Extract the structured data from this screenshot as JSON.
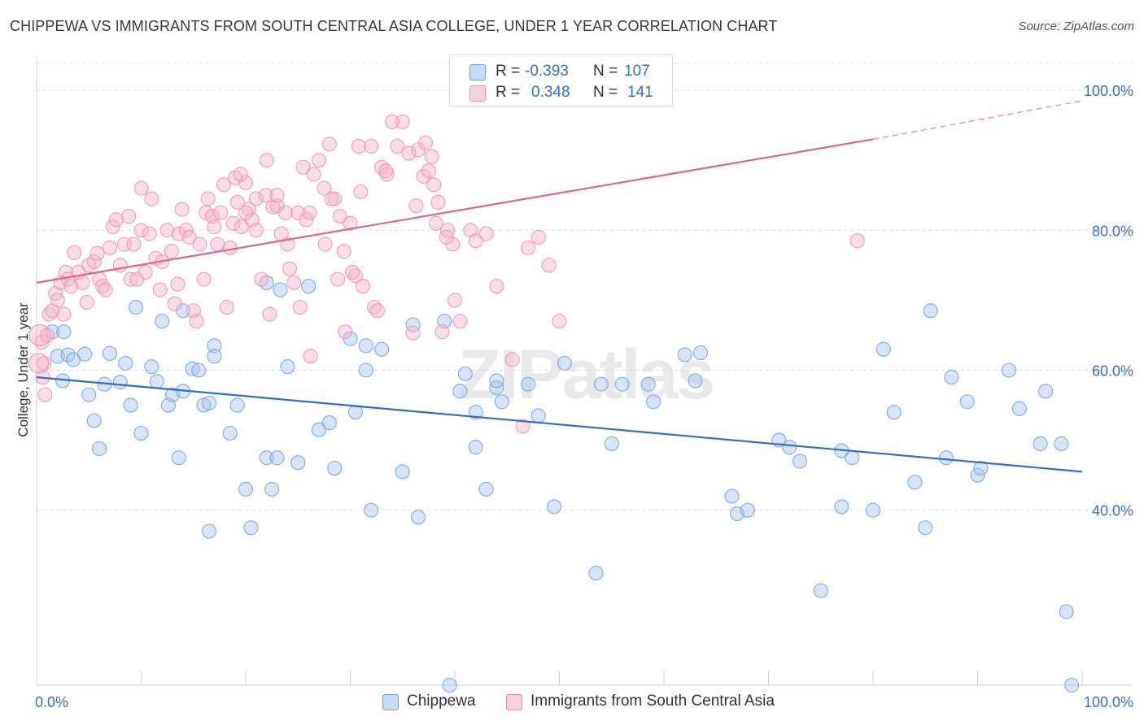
{
  "title": "CHIPPEWA VS IMMIGRANTS FROM SOUTH CENTRAL ASIA COLLEGE, UNDER 1 YEAR CORRELATION CHART",
  "source": "Source: ZipAtlas.com",
  "watermark": "ZIPatlas",
  "legend": {
    "rows": [
      {
        "r_label": "R =",
        "r_value": "-0.393",
        "n_label": "N =",
        "n_value": "107",
        "color": "#a9c4f0"
      },
      {
        "r_label": "R =",
        "r_value": "0.348",
        "n_label": "N =",
        "n_value": "141",
        "color": "#f5b4c8"
      }
    ]
  },
  "bottom_legend": [
    {
      "label": "Chippewa",
      "color": "#a9c4f0"
    },
    {
      "label": "Immigrants from South Central Asia",
      "color": "#f5b4c8"
    }
  ],
  "chart_data": {
    "type": "scatter",
    "title": "CHIPPEWA VS IMMIGRANTS FROM SOUTH CENTRAL ASIA COLLEGE, UNDER 1 YEAR CORRELATION CHART",
    "xlabel": "",
    "ylabel": "College, Under 1 year",
    "xlim": [
      0,
      100
    ],
    "ylim": [
      15,
      105
    ],
    "x_tick_labels": [
      "0.0%",
      "100.0%"
    ],
    "y_ticks": [
      40,
      60,
      80,
      100
    ],
    "y_tick_labels": [
      "40.0%",
      "60.0%",
      "80.0%",
      "100.0%"
    ],
    "grid": "horizontal dashed",
    "series": [
      {
        "name": "Chippewa",
        "color": "#6f9ee6",
        "fill": "#a9c4f0",
        "line_color": "#2f6fcc",
        "trend": {
          "x0": 0,
          "y0": 59.0,
          "x1": 100,
          "y1": 45.5,
          "dashed_from": null
        },
        "points": [
          [
            1.5,
            65.5
          ],
          [
            2,
            62
          ],
          [
            2.5,
            58.5
          ],
          [
            2.6,
            65.5
          ],
          [
            3,
            62.2
          ],
          [
            3.5,
            61.5
          ],
          [
            4.6,
            62.3
          ],
          [
            5,
            56.5
          ],
          [
            5.5,
            52.8
          ],
          [
            6,
            48.8
          ],
          [
            6.5,
            58
          ],
          [
            7,
            62.4
          ],
          [
            8.5,
            61
          ],
          [
            8,
            58.3
          ],
          [
            9,
            55
          ],
          [
            9.5,
            69
          ],
          [
            10,
            51
          ],
          [
            11,
            60.5
          ],
          [
            11.5,
            58.4
          ],
          [
            12,
            67
          ],
          [
            12.6,
            55
          ],
          [
            13,
            56.5
          ],
          [
            13.6,
            47.5
          ],
          [
            14,
            57
          ],
          [
            14,
            68.5
          ],
          [
            14.9,
            60.2
          ],
          [
            15.5,
            60
          ],
          [
            16,
            55
          ],
          [
            16.5,
            55.3
          ],
          [
            17,
            63.5
          ],
          [
            16.5,
            37
          ],
          [
            17,
            62
          ],
          [
            18.5,
            51
          ],
          [
            19.2,
            55
          ],
          [
            20,
            43
          ],
          [
            20.5,
            37.5
          ],
          [
            22,
            72.5
          ],
          [
            22.5,
            43
          ],
          [
            22,
            47.5
          ],
          [
            23,
            47.5
          ],
          [
            23.3,
            71.5
          ],
          [
            24,
            60.5
          ],
          [
            25,
            46.8
          ],
          [
            26,
            72
          ],
          [
            27,
            51.5
          ],
          [
            28,
            52.5
          ],
          [
            28.5,
            46
          ],
          [
            30,
            64.5
          ],
          [
            30.5,
            54
          ],
          [
            31.5,
            63.5
          ],
          [
            31.5,
            60
          ],
          [
            32,
            40
          ],
          [
            33,
            63
          ],
          [
            35,
            45.5
          ],
          [
            36,
            66.5
          ],
          [
            36.5,
            39
          ],
          [
            39,
            67
          ],
          [
            39.5,
            15
          ],
          [
            40.5,
            57
          ],
          [
            41,
            59.5
          ],
          [
            42,
            49
          ],
          [
            42,
            54
          ],
          [
            43,
            43
          ],
          [
            44,
            57.5
          ],
          [
            44,
            58.5
          ],
          [
            44.5,
            55.5
          ],
          [
            47,
            58
          ],
          [
            48,
            53.5
          ],
          [
            49.5,
            40.5
          ],
          [
            50.5,
            61
          ],
          [
            53.5,
            31
          ],
          [
            54,
            58
          ],
          [
            55,
            49.5
          ],
          [
            56,
            58
          ],
          [
            58.5,
            58
          ],
          [
            59,
            55.5
          ],
          [
            62,
            62.2
          ],
          [
            63,
            58.5
          ],
          [
            63.5,
            62.5
          ],
          [
            66.5,
            42
          ],
          [
            67,
            39.5
          ],
          [
            68,
            40
          ],
          [
            71,
            50
          ],
          [
            72,
            49
          ],
          [
            73,
            47
          ],
          [
            75,
            28.5
          ],
          [
            77,
            48.5
          ],
          [
            77,
            40.5
          ],
          [
            78,
            47.5
          ],
          [
            80,
            40
          ],
          [
            81,
            63
          ],
          [
            82,
            54
          ],
          [
            84,
            44
          ],
          [
            85,
            37.5
          ],
          [
            85.5,
            68.5
          ],
          [
            87,
            47.5
          ],
          [
            87.5,
            59
          ],
          [
            89,
            55.5
          ],
          [
            90,
            45
          ],
          [
            90.3,
            46
          ],
          [
            93,
            60
          ],
          [
            94,
            54.5
          ],
          [
            96,
            49.5
          ],
          [
            96.5,
            57
          ],
          [
            98,
            49.5
          ],
          [
            98.5,
            25.5
          ],
          [
            99,
            15
          ]
        ]
      },
      {
        "name": "Immigrants from South Central Asia",
        "color": "#ee8fb0",
        "fill": "#f5b4c8",
        "line_color": "#e0668e",
        "trend": {
          "x0": 0,
          "y0": 72.5,
          "x1": 80,
          "y1": 93.0,
          "dashed_from": 80,
          "x2": 100,
          "y2": 98.5
        },
        "points": [
          [
            0.5,
            64
          ],
          [
            0.6,
            59
          ],
          [
            0.7,
            61
          ],
          [
            0.8,
            56.5
          ],
          [
            1,
            65
          ],
          [
            1.2,
            68
          ],
          [
            1.5,
            68.5
          ],
          [
            1.8,
            71
          ],
          [
            2,
            70
          ],
          [
            2.3,
            72.5
          ],
          [
            2.6,
            68
          ],
          [
            2.8,
            74
          ],
          [
            3,
            73
          ],
          [
            3.3,
            72
          ],
          [
            3.6,
            76.8
          ],
          [
            4,
            74
          ],
          [
            4.4,
            72.5
          ],
          [
            4.8,
            69.7
          ],
          [
            5,
            75
          ],
          [
            5.5,
            75.5
          ],
          [
            5.8,
            76.7
          ],
          [
            6,
            73
          ],
          [
            6.3,
            72
          ],
          [
            6.6,
            71.5
          ],
          [
            7,
            77.5
          ],
          [
            7.3,
            80.5
          ],
          [
            7.6,
            81.5
          ],
          [
            8,
            75
          ],
          [
            8.4,
            78
          ],
          [
            8.8,
            82
          ],
          [
            9,
            73
          ],
          [
            9.3,
            78
          ],
          [
            9.6,
            73
          ],
          [
            10,
            80
          ],
          [
            10.4,
            74
          ],
          [
            10.8,
            79.5
          ],
          [
            10,
            86
          ],
          [
            11,
            84.5
          ],
          [
            11.4,
            76
          ],
          [
            11.8,
            71.5
          ],
          [
            12,
            75.5
          ],
          [
            12.5,
            80
          ],
          [
            12.9,
            77
          ],
          [
            13.2,
            69.5
          ],
          [
            13.5,
            72.3
          ],
          [
            13.6,
            79.5
          ],
          [
            13.9,
            83
          ],
          [
            14.3,
            80
          ],
          [
            14.6,
            79
          ],
          [
            15,
            68.5
          ],
          [
            15.3,
            67
          ],
          [
            15.6,
            78
          ],
          [
            16,
            73
          ],
          [
            16.2,
            82.5
          ],
          [
            16.4,
            84.5
          ],
          [
            16.8,
            82
          ],
          [
            17,
            80.5
          ],
          [
            17.3,
            78
          ],
          [
            17.6,
            82.5
          ],
          [
            17.9,
            86.5
          ],
          [
            18.2,
            69
          ],
          [
            18.5,
            77.5
          ],
          [
            18.8,
            81
          ],
          [
            19.2,
            84
          ],
          [
            19.6,
            80.5
          ],
          [
            20,
            86.8
          ],
          [
            20.3,
            83
          ],
          [
            20.6,
            81.5
          ],
          [
            21,
            84.5
          ],
          [
            21.5,
            73
          ],
          [
            21.9,
            85
          ],
          [
            22.3,
            68
          ],
          [
            22.6,
            83.3
          ],
          [
            23,
            83.5
          ],
          [
            23.4,
            79.5
          ],
          [
            23.8,
            82.5
          ],
          [
            24.2,
            74.5
          ],
          [
            24.6,
            72.5
          ],
          [
            25,
            82.5
          ],
          [
            25.5,
            89
          ],
          [
            25.8,
            81.5
          ],
          [
            26.1,
            82.5
          ],
          [
            26.5,
            88
          ],
          [
            27,
            90
          ],
          [
            27.5,
            86
          ],
          [
            28,
            92.3
          ],
          [
            28.5,
            84.5
          ],
          [
            29,
            82
          ],
          [
            29.5,
            65.5
          ],
          [
            30,
            81
          ],
          [
            30.5,
            73.5
          ],
          [
            30.8,
            92
          ],
          [
            31,
            85.5
          ],
          [
            32,
            92
          ],
          [
            32.3,
            69
          ],
          [
            33,
            89
          ],
          [
            33.5,
            88
          ],
          [
            34.5,
            92
          ],
          [
            35,
            95.5
          ],
          [
            36,
            65.3
          ],
          [
            36.5,
            91.5
          ],
          [
            37,
            87.7
          ],
          [
            37.5,
            88.5
          ],
          [
            37.8,
            90.5
          ],
          [
            38.2,
            81
          ],
          [
            38.8,
            65.5
          ],
          [
            39.3,
            80
          ],
          [
            39.8,
            78
          ],
          [
            40.5,
            67
          ],
          [
            38,
            86.5
          ],
          [
            19,
            87.5
          ],
          [
            19.5,
            88
          ],
          [
            20,
            82.5
          ],
          [
            21,
            80
          ],
          [
            22,
            90
          ],
          [
            23,
            85
          ],
          [
            24,
            78
          ],
          [
            25.2,
            69
          ],
          [
            26.2,
            62
          ],
          [
            27.6,
            78
          ],
          [
            28.2,
            84.5
          ],
          [
            28.8,
            73
          ],
          [
            29.4,
            77
          ],
          [
            30.2,
            74
          ],
          [
            31.2,
            72
          ],
          [
            32.6,
            68.5
          ],
          [
            33.4,
            88.5
          ],
          [
            34,
            95.5
          ],
          [
            35.6,
            91
          ],
          [
            36.3,
            83.5
          ],
          [
            37.2,
            92.5
          ],
          [
            38.4,
            84
          ],
          [
            39.2,
            79
          ],
          [
            40,
            70
          ],
          [
            41.5,
            80
          ],
          [
            42,
            78.5
          ],
          [
            43,
            79.5
          ],
          [
            44,
            72
          ],
          [
            45.5,
            61.5
          ],
          [
            46.5,
            52
          ],
          [
            47,
            77.5
          ],
          [
            48,
            79
          ],
          [
            49,
            75
          ],
          [
            50,
            67
          ],
          [
            78.5,
            78.5
          ]
        ]
      }
    ]
  }
}
